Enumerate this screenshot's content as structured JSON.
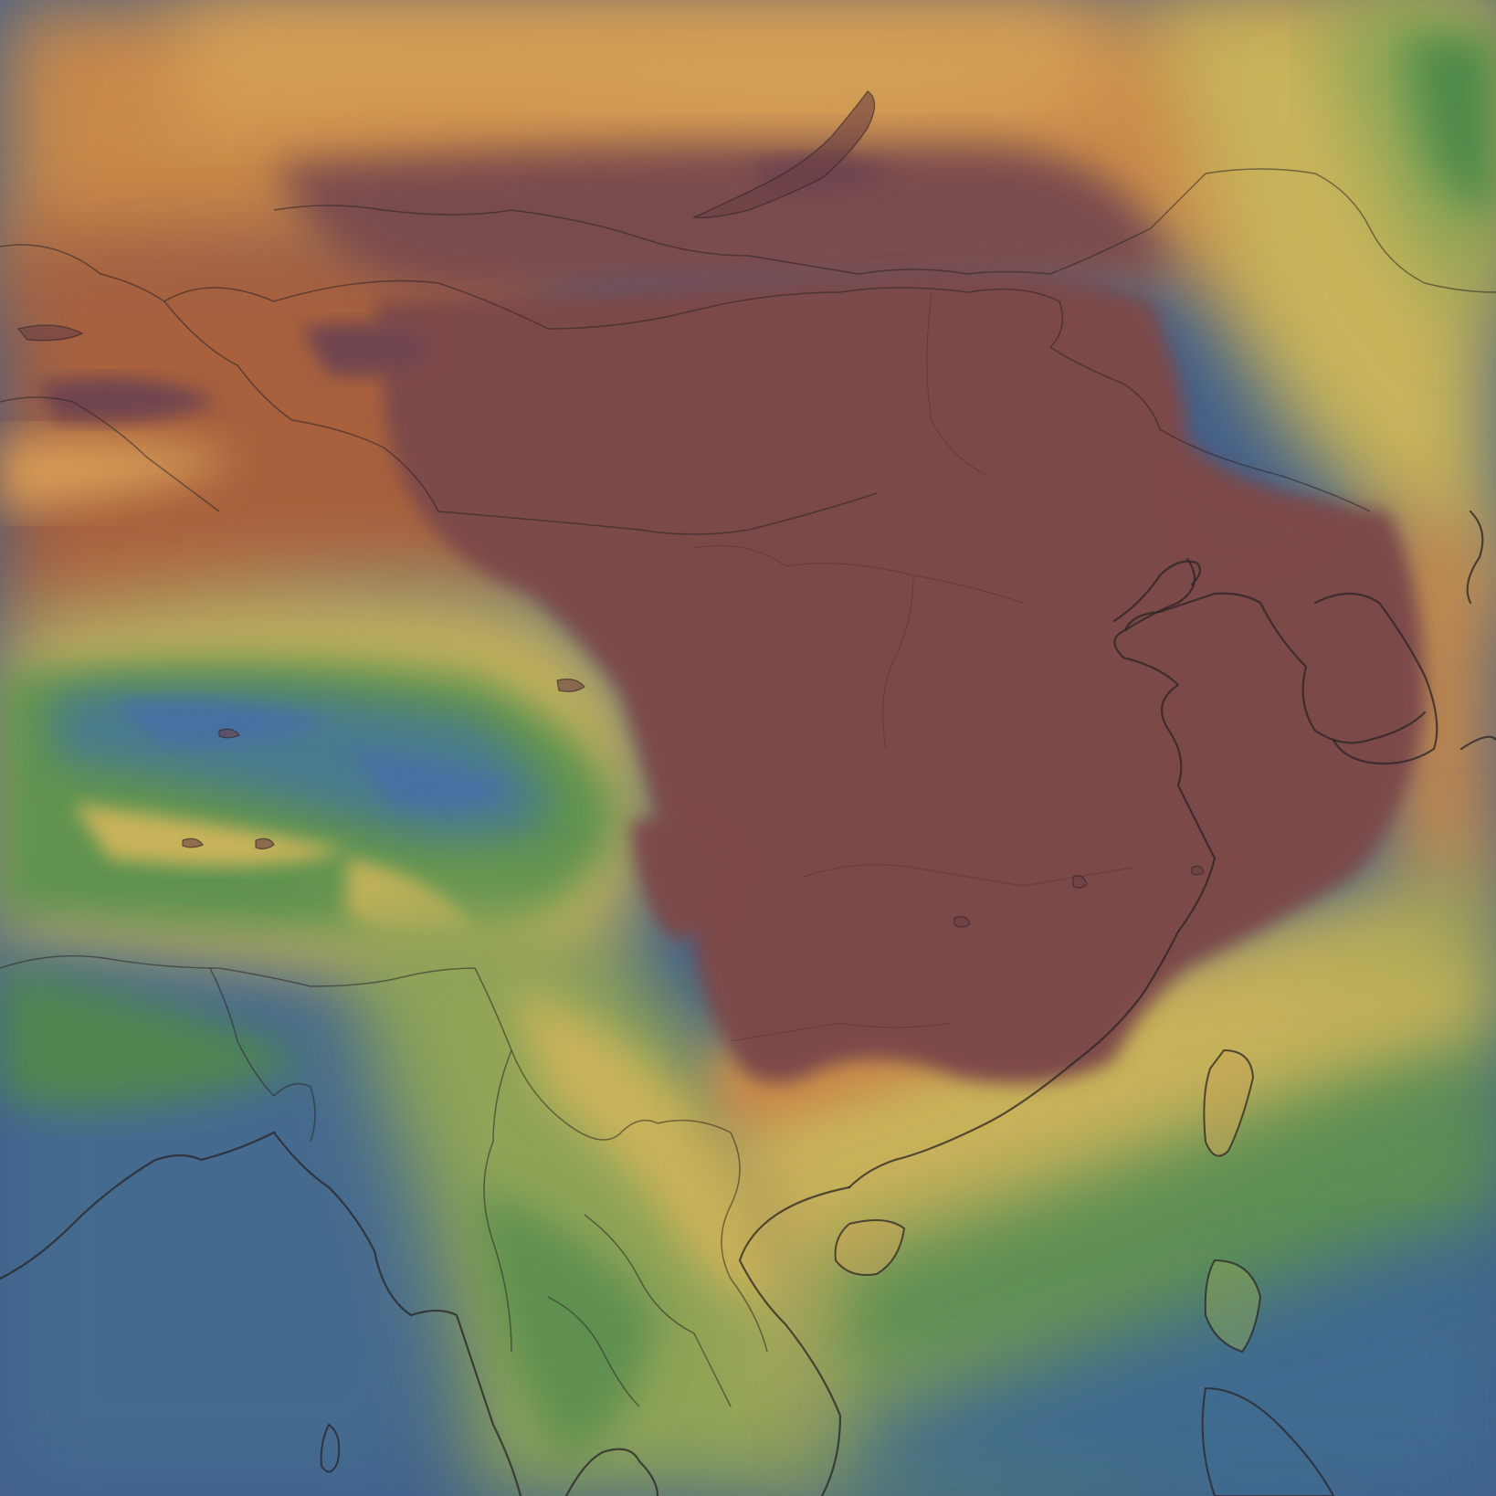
{
  "map": {
    "type": "weather-heatmap",
    "region": "East Asia",
    "layer_palette": {
      "very_high": "#7c4949",
      "high": "#a8603d",
      "mid_high": "#c98a48",
      "mid": "#c9b35a",
      "mid_low": "#8fa456",
      "low": "#4f8a4a",
      "very_low": "#3f6794",
      "ocean_low": "#3f5e8a"
    },
    "overlay_lines": [
      "coastlines",
      "country-borders",
      "province-borders",
      "lakes"
    ]
  }
}
